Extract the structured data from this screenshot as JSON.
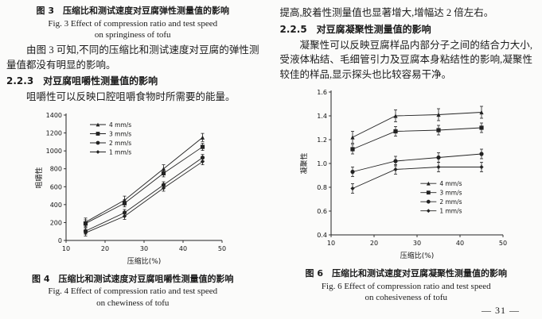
{
  "page": {
    "page_number": "— 31 —"
  },
  "left_column": {
    "fig3_caption_cn": "图 3　压缩比和测试速度对豆腐弹性测量值的影响",
    "fig3_caption_en1": "Fig. 3 Effect of compression ratio and test speed",
    "fig3_caption_en2": "on springiness of tofu",
    "para1": "由图 3 可知,不同的压缩比和测试速度对豆腐的弹性测量值都没有明显的影响。",
    "heading_223": "2.2.3　对豆腐咀嚼性测量值的影响",
    "para2": "咀嚼性可以反映口腔咀嚼食物时所需要的能量。",
    "fig4_caption_cn": "图 4　压缩比和测试速度对豆腐咀嚼性测量值的影响",
    "fig4_caption_en1": "Fig. 4 Effect of compression ratio and test speed",
    "fig4_caption_en2": "on chewiness of tofu"
  },
  "right_column": {
    "para1": "提高,胶着性测量值也显著增大,增幅达 2 倍左右。",
    "heading_225": "2.2.5　对豆腐凝聚性测量值的影响",
    "para2": "凝聚性可以反映豆腐样品内部分子之间的结合力大小,受液体粘结、毛细管引力及豆腐本身粘结性的影响,凝聚性较佳的样品,显示探头也比较容易干净。",
    "fig6_caption_cn": "图 6　压缩比和测试速度对豆腐凝聚性测量值的影响",
    "fig6_caption_en1": "Fig. 6 Effect of compression ratio and test speed",
    "fig6_caption_en2": "on cohesiveness of tofu"
  },
  "chart_data": [
    {
      "id": "fig4",
      "type": "line",
      "title": "",
      "xlabel": "压缩比(%)",
      "ylabel": "咀嚼性",
      "xlim": [
        10,
        50
      ],
      "ylim": [
        0,
        1400
      ],
      "x_ticks": [
        "10",
        "20",
        "30",
        "40",
        "50"
      ],
      "y_ticks": [
        "0",
        "200",
        "400",
        "600",
        "800",
        "1000",
        "1200",
        "1400"
      ],
      "x": [
        15,
        25,
        35,
        45
      ],
      "legend_pos": "top-left",
      "grid": false,
      "line_color": "#222222",
      "series": [
        {
          "name": "4 mm/s",
          "marker": "triangle",
          "values": [
            205,
            450,
            800,
            1150
          ],
          "error": 45
        },
        {
          "name": "3 mm/s",
          "marker": "square",
          "values": [
            190,
            415,
            750,
            1045
          ],
          "error": 40
        },
        {
          "name": "2 mm/s",
          "marker": "circle",
          "values": [
            105,
            310,
            620,
            925
          ],
          "error": 35
        },
        {
          "name": "1 mm/s",
          "marker": "diamond",
          "values": [
            85,
            270,
            585,
            880
          ],
          "error": 35
        }
      ]
    },
    {
      "id": "fig6",
      "type": "line",
      "title": "",
      "xlabel": "压缩比(%)",
      "ylabel": "凝聚性",
      "xlim": [
        10,
        50
      ],
      "ylim": [
        0.4,
        1.6
      ],
      "x_ticks": [
        "10",
        "20",
        "30",
        "40",
        "50"
      ],
      "y_ticks": [
        "0.4",
        "0.6",
        "0.8",
        "1.0",
        "1.2",
        "1.4",
        "1.6"
      ],
      "x": [
        15,
        25,
        35,
        45
      ],
      "legend_pos": "bottom-right",
      "grid": false,
      "line_color": "#222222",
      "series": [
        {
          "name": "4 mm/s",
          "marker": "triangle",
          "values": [
            1.22,
            1.4,
            1.41,
            1.43
          ],
          "error": 0.05
        },
        {
          "name": "3 mm/s",
          "marker": "square",
          "values": [
            1.12,
            1.27,
            1.28,
            1.3
          ],
          "error": 0.04
        },
        {
          "name": "2 mm/s",
          "marker": "circle",
          "values": [
            0.93,
            1.02,
            1.05,
            1.08
          ],
          "error": 0.04
        },
        {
          "name": "1 mm/s",
          "marker": "diamond",
          "values": [
            0.79,
            0.95,
            0.97,
            0.97
          ],
          "error": 0.04
        }
      ]
    }
  ]
}
